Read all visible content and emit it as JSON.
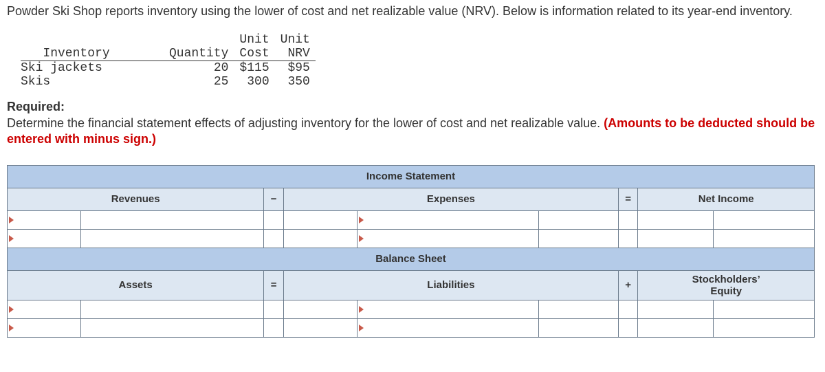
{
  "problem": {
    "intro": "Powder Ski Shop reports inventory using the lower of cost and net realizable value (NRV). Below is information related to its year-end inventory."
  },
  "inventory": {
    "headers": {
      "item": "Inventory",
      "qty": "Quantity",
      "cost_top": "Unit",
      "cost_bot": "Cost",
      "nrv_top": "Unit",
      "nrv_bot": "NRV"
    },
    "rows": [
      {
        "item": "Ski jackets",
        "qty": "20",
        "cost": "$115",
        "nrv": "$95"
      },
      {
        "item": "Skis",
        "qty": "25",
        "cost": "300",
        "nrv": "350"
      }
    ]
  },
  "required": {
    "label": "Required:",
    "text": "Determine the financial statement effects of adjusting inventory for the lower of cost and net realizable value. ",
    "red": "(Amounts to be deducted should be entered with minus sign.)"
  },
  "fs": {
    "income_title": "Income Statement",
    "balance_title": "Balance Sheet",
    "revenues": "Revenues",
    "expenses": "Expenses",
    "net_income": "Net Income",
    "assets": "Assets",
    "liabilities": "Liabilities",
    "equity_line1": "Stockholders’",
    "equity_line2": "Equity",
    "minus": "−",
    "equals": "=",
    "plus": "+"
  },
  "style": {
    "header_bg": "#b4cbe8",
    "subheader_bg": "#dde7f2",
    "border": "#6b7b8c",
    "arrow": "#c85a4a",
    "red": "#cc0000"
  }
}
